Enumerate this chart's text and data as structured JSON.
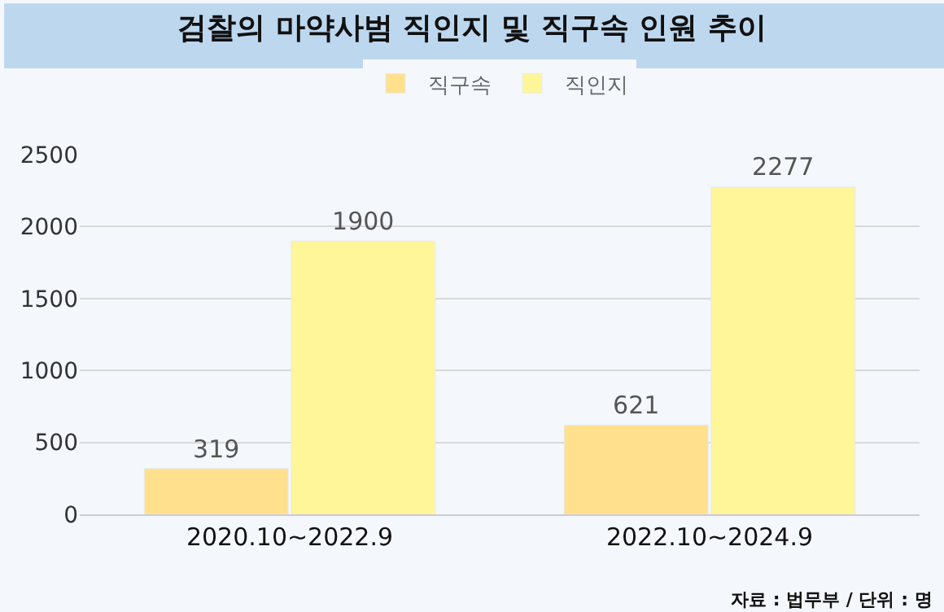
{
  "chart_data": {
    "type": "bar",
    "title": "검찰의 마약사범 직인지 및 직구속 인원 추이",
    "categories": [
      "2020.10~2022.9",
      "2022.10~2024.9"
    ],
    "series": [
      {
        "name": "직구속",
        "color": "#ffe08c",
        "values": [
          319,
          621
        ]
      },
      {
        "name": "직인지",
        "color": "#fff599",
        "values": [
          1900,
          2277
        ]
      }
    ],
    "ylim": [
      0,
      2500
    ],
    "yticks": [
      0,
      500,
      1000,
      1500,
      2000,
      2500
    ],
    "grid": "y",
    "legend": "top",
    "data_labels": true,
    "annotations": [
      "자료 : 법무부 / 단위 : 명"
    ]
  }
}
